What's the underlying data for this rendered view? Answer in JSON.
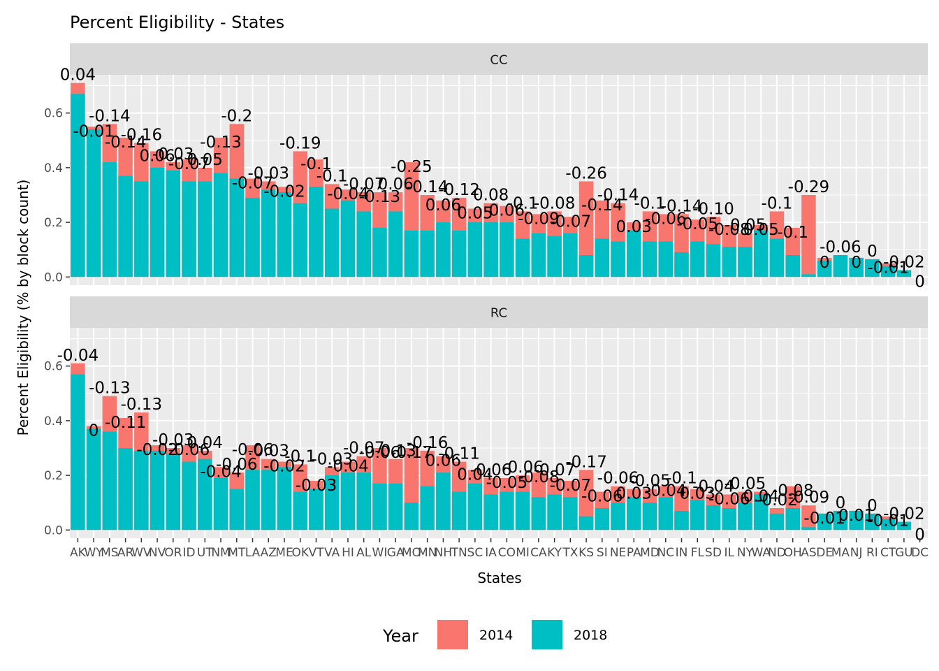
{
  "chart_data": {
    "type": "bar",
    "title": "Percent Eligibility - States",
    "xlabel": "States",
    "ylabel": "Percent Eligibility (% by block count)",
    "ylim": [
      -0.03,
      0.74
    ],
    "yticks": [
      0.0,
      0.2,
      0.4,
      0.6
    ],
    "ytick_labels": [
      "0.0",
      "0.2",
      "0.4",
      "0.6"
    ],
    "grid": true,
    "legend": {
      "title": "Year",
      "placement": "bottom",
      "entries": [
        "2014",
        "2018"
      ]
    },
    "series_colors": {
      "2014": "#F8766D",
      "2018": "#00BFC4"
    },
    "categories": [
      "AK",
      "WY",
      "MS",
      "AR",
      "WV",
      "NV",
      "OR",
      "ID",
      "UT",
      "NM",
      "MT",
      "LA",
      "AZ",
      "ME",
      "OK",
      "VT",
      "VA",
      "HI",
      "AL",
      "WI",
      "GA",
      "MO",
      "MN",
      "NH",
      "TN",
      "SC",
      "IA",
      "CO",
      "MI",
      "CA",
      "KY",
      "TX",
      "KS",
      "SI",
      "NE",
      "PA",
      "MD",
      "NC",
      "IN",
      "FL",
      "SD",
      "IL",
      "NY",
      "WA",
      "ND",
      "OH",
      "AS",
      "DE",
      "MA",
      "NJ",
      "RI",
      "CT",
      "GU",
      "DC"
    ],
    "panels": [
      {
        "label": "CC",
        "series": [
          {
            "name": "2014",
            "values": [
              0.71,
              0.55,
              0.56,
              0.51,
              0.49,
              0.46,
              0.42,
              0.43,
              0.4,
              0.51,
              0.56,
              0.36,
              0.35,
              0.33,
              0.46,
              0.43,
              0.34,
              0.32,
              0.31,
              0.31,
              0.31,
              0.42,
              0.3,
              0.28,
              0.29,
              0.25,
              0.27,
              0.26,
              0.24,
              0.23,
              0.24,
              0.22,
              0.35,
              0.28,
              0.27,
              0.2,
              0.24,
              0.23,
              0.23,
              0.21,
              0.22,
              0.19,
              0.16,
              0.19,
              0.24,
              0.18,
              0.3,
              0.07,
              0.08,
              0.07,
              0.065,
              0.05,
              0.025,
              0.0
            ]
          },
          {
            "name": "2018",
            "values": [
              0.67,
              0.54,
              0.42,
              0.37,
              0.35,
              0.4,
              0.39,
              0.35,
              0.35,
              0.38,
              0.36,
              0.29,
              0.32,
              0.31,
              0.27,
              0.33,
              0.25,
              0.28,
              0.24,
              0.18,
              0.24,
              0.17,
              0.17,
              0.2,
              0.17,
              0.2,
              0.2,
              0.2,
              0.14,
              0.16,
              0.15,
              0.16,
              0.08,
              0.14,
              0.13,
              0.17,
              0.13,
              0.13,
              0.09,
              0.13,
              0.12,
              0.11,
              0.11,
              0.17,
              0.14,
              0.08,
              0.01,
              0.06,
              0.08,
              0.07,
              0.065,
              0.04,
              0.025,
              0.0
            ]
          }
        ],
        "data_labels": [
          "0.04",
          "-0.01",
          "-0.14",
          "-0.14",
          "-0.16",
          "0.06",
          "-0.03",
          "-0.07",
          "0.05",
          "-0.13",
          "-0.2",
          "-0.07",
          "-0.03",
          "-0.02",
          "-0.19",
          "-0.1",
          "-0.1",
          "-0.04",
          "-0.07",
          "-0.13",
          "0.06",
          "-0.25",
          "-0.14",
          "0.06",
          "-0.12",
          "0.05",
          "0.08",
          "0.06",
          "-0.1",
          "-0.09",
          "-0.08",
          "-0.07",
          "-0.26",
          "-0.14",
          "-0.14",
          "0.03",
          "-0.1",
          "-0.06",
          "-0.14",
          "-0.05",
          "-0.10",
          "-0.08",
          "-0.05",
          "0.05",
          "-0.1",
          "-0.1",
          "-0.29",
          "0",
          "-0.06",
          "0",
          "0",
          "-0.01",
          "-0.02",
          "0"
        ]
      },
      {
        "label": "RC",
        "series": [
          {
            "name": "2014",
            "values": [
              0.61,
              0.38,
              0.49,
              0.41,
              0.43,
              0.31,
              0.3,
              0.31,
              0.29,
              0.23,
              0.21,
              0.31,
              0.26,
              0.25,
              0.24,
              0.18,
              0.23,
              0.25,
              0.27,
              0.3,
              0.26,
              0.3,
              0.29,
              0.27,
              0.25,
              0.22,
              0.19,
              0.19,
              0.2,
              0.21,
              0.19,
              0.18,
              0.22,
              0.14,
              0.16,
              0.15,
              0.15,
              0.16,
              0.16,
              0.15,
              0.13,
              0.13,
              0.14,
              0.14,
              0.08,
              0.16,
              0.09,
              0.06,
              0.07,
              0.07,
              0.06,
              0.05,
              0.03,
              0.0
            ]
          },
          {
            "name": "2018",
            "values": [
              0.57,
              0.37,
              0.36,
              0.3,
              0.29,
              0.29,
              0.28,
              0.25,
              0.26,
              0.19,
              0.15,
              0.22,
              0.22,
              0.23,
              0.14,
              0.15,
              0.2,
              0.21,
              0.21,
              0.17,
              0.17,
              0.1,
              0.16,
              0.21,
              0.14,
              0.17,
              0.13,
              0.14,
              0.14,
              0.12,
              0.13,
              0.12,
              0.05,
              0.08,
              0.1,
              0.12,
              0.1,
              0.12,
              0.07,
              0.11,
              0.09,
              0.08,
              0.1,
              0.13,
              0.06,
              0.08,
              0.01,
              0.06,
              0.07,
              0.07,
              0.06,
              0.04,
              0.03,
              0.0
            ]
          }
        ],
        "data_labels": [
          "-0.04",
          "0",
          "-0.13",
          "-0.11",
          "-0.13",
          "-0.02",
          "-0.03",
          "-0.06",
          "0.04",
          "-0.04",
          "-0.06",
          "-0.06",
          "-0.03",
          "-0.02",
          "-0.1",
          "-0.03",
          "-0.03",
          "-0.04",
          "-0.07",
          "-0.06",
          "-0.13",
          "-0.17",
          "-0.16",
          "0.06",
          "-0.11",
          "0.04",
          "-0.06",
          "-0.05",
          "-0.06",
          "-0.08",
          "-0.07",
          "-0.07",
          "-0.17",
          "-0.06",
          "-0.06",
          "0.03",
          "-0.05",
          "-0.04",
          "-0.1",
          "0.03",
          "-0.04",
          "-0.06",
          "-0.05",
          "0.04",
          "-0.02",
          "-0.08",
          "-0.09",
          "-0.01",
          "0",
          "0.01",
          "0",
          "-0.01",
          "-0.02",
          "0"
        ]
      }
    ]
  }
}
